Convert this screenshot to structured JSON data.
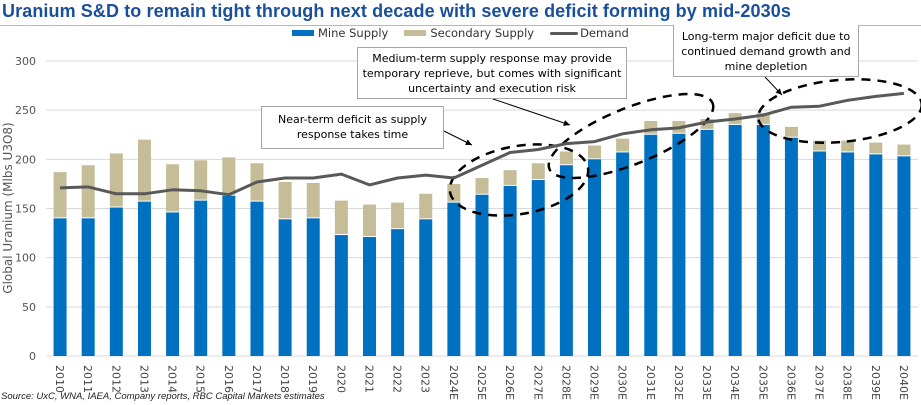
{
  "title": "Uranium S&D to remain tight through next decade with severe deficit forming by mid-2030s",
  "source": "Source: UxC, WNA, IAEA, Company reports, RBC Capital Markets estimates",
  "colors": {
    "mine_supply": "#0070c0",
    "secondary_supply": "#c4bd97",
    "demand": "#595959",
    "title": "#1a4f9c",
    "gridline": "#d9d9d9"
  },
  "annotations": [
    {
      "id": "near-term",
      "text": "Near-term deficit as supply response takes time"
    },
    {
      "id": "medium-term",
      "text": "Medium-term supply response may provide temporary reprieve, but comes with significant uncertainty and execution risk"
    },
    {
      "id": "long-term",
      "text": "Long-term major deficit due to continued demand growth and mine depletion"
    }
  ],
  "chart_data": {
    "type": "bar",
    "stacked": true,
    "title": "Uranium S&D to remain tight through next decade with severe deficit forming by mid-2030s",
    "xlabel": "",
    "ylabel": "Global Uranium (Mlbs U3O8)",
    "ylim": [
      0,
      300
    ],
    "yticks": [
      0,
      50,
      100,
      150,
      200,
      250,
      300
    ],
    "grid": true,
    "legend_position": "top",
    "categories": [
      "2010",
      "2011",
      "2012",
      "2013",
      "2014",
      "2015",
      "2016",
      "2017",
      "2018",
      "2019",
      "2020",
      "2021",
      "2022",
      "2023",
      "2024E",
      "2025E",
      "2026E",
      "2027E",
      "2028E",
      "2029E",
      "2030E",
      "2031E",
      "2032E",
      "2033E",
      "2034E",
      "2035E",
      "2036E",
      "2037E",
      "2038E",
      "2039E",
      "2040E"
    ],
    "series": [
      {
        "name": "Mine Supply",
        "type": "bar",
        "values": [
          140,
          140,
          151,
          157,
          146,
          158,
          163,
          157,
          139,
          140,
          123,
          121,
          129,
          139,
          156,
          164,
          173,
          179,
          194,
          200,
          207,
          225,
          226,
          230,
          235,
          235,
          222,
          208,
          207,
          205,
          203
        ]
      },
      {
        "name": "Secondary Supply",
        "type": "bar",
        "values": [
          47,
          54,
          55,
          63,
          49,
          41,
          39,
          39,
          38,
          36,
          35,
          33,
          27,
          26,
          19,
          17,
          16,
          17,
          14,
          14,
          14,
          14,
          13,
          11,
          12,
          12,
          11,
          11,
          12,
          12,
          12
        ]
      },
      {
        "name": "Demand",
        "type": "line",
        "values": [
          171,
          172,
          165,
          165,
          169,
          168,
          164,
          177,
          181,
          181,
          185,
          174,
          181,
          184,
          181,
          194,
          207,
          210,
          216,
          218,
          226,
          230,
          232,
          238,
          241,
          245,
          253,
          254,
          260,
          264,
          267
        ]
      }
    ]
  }
}
